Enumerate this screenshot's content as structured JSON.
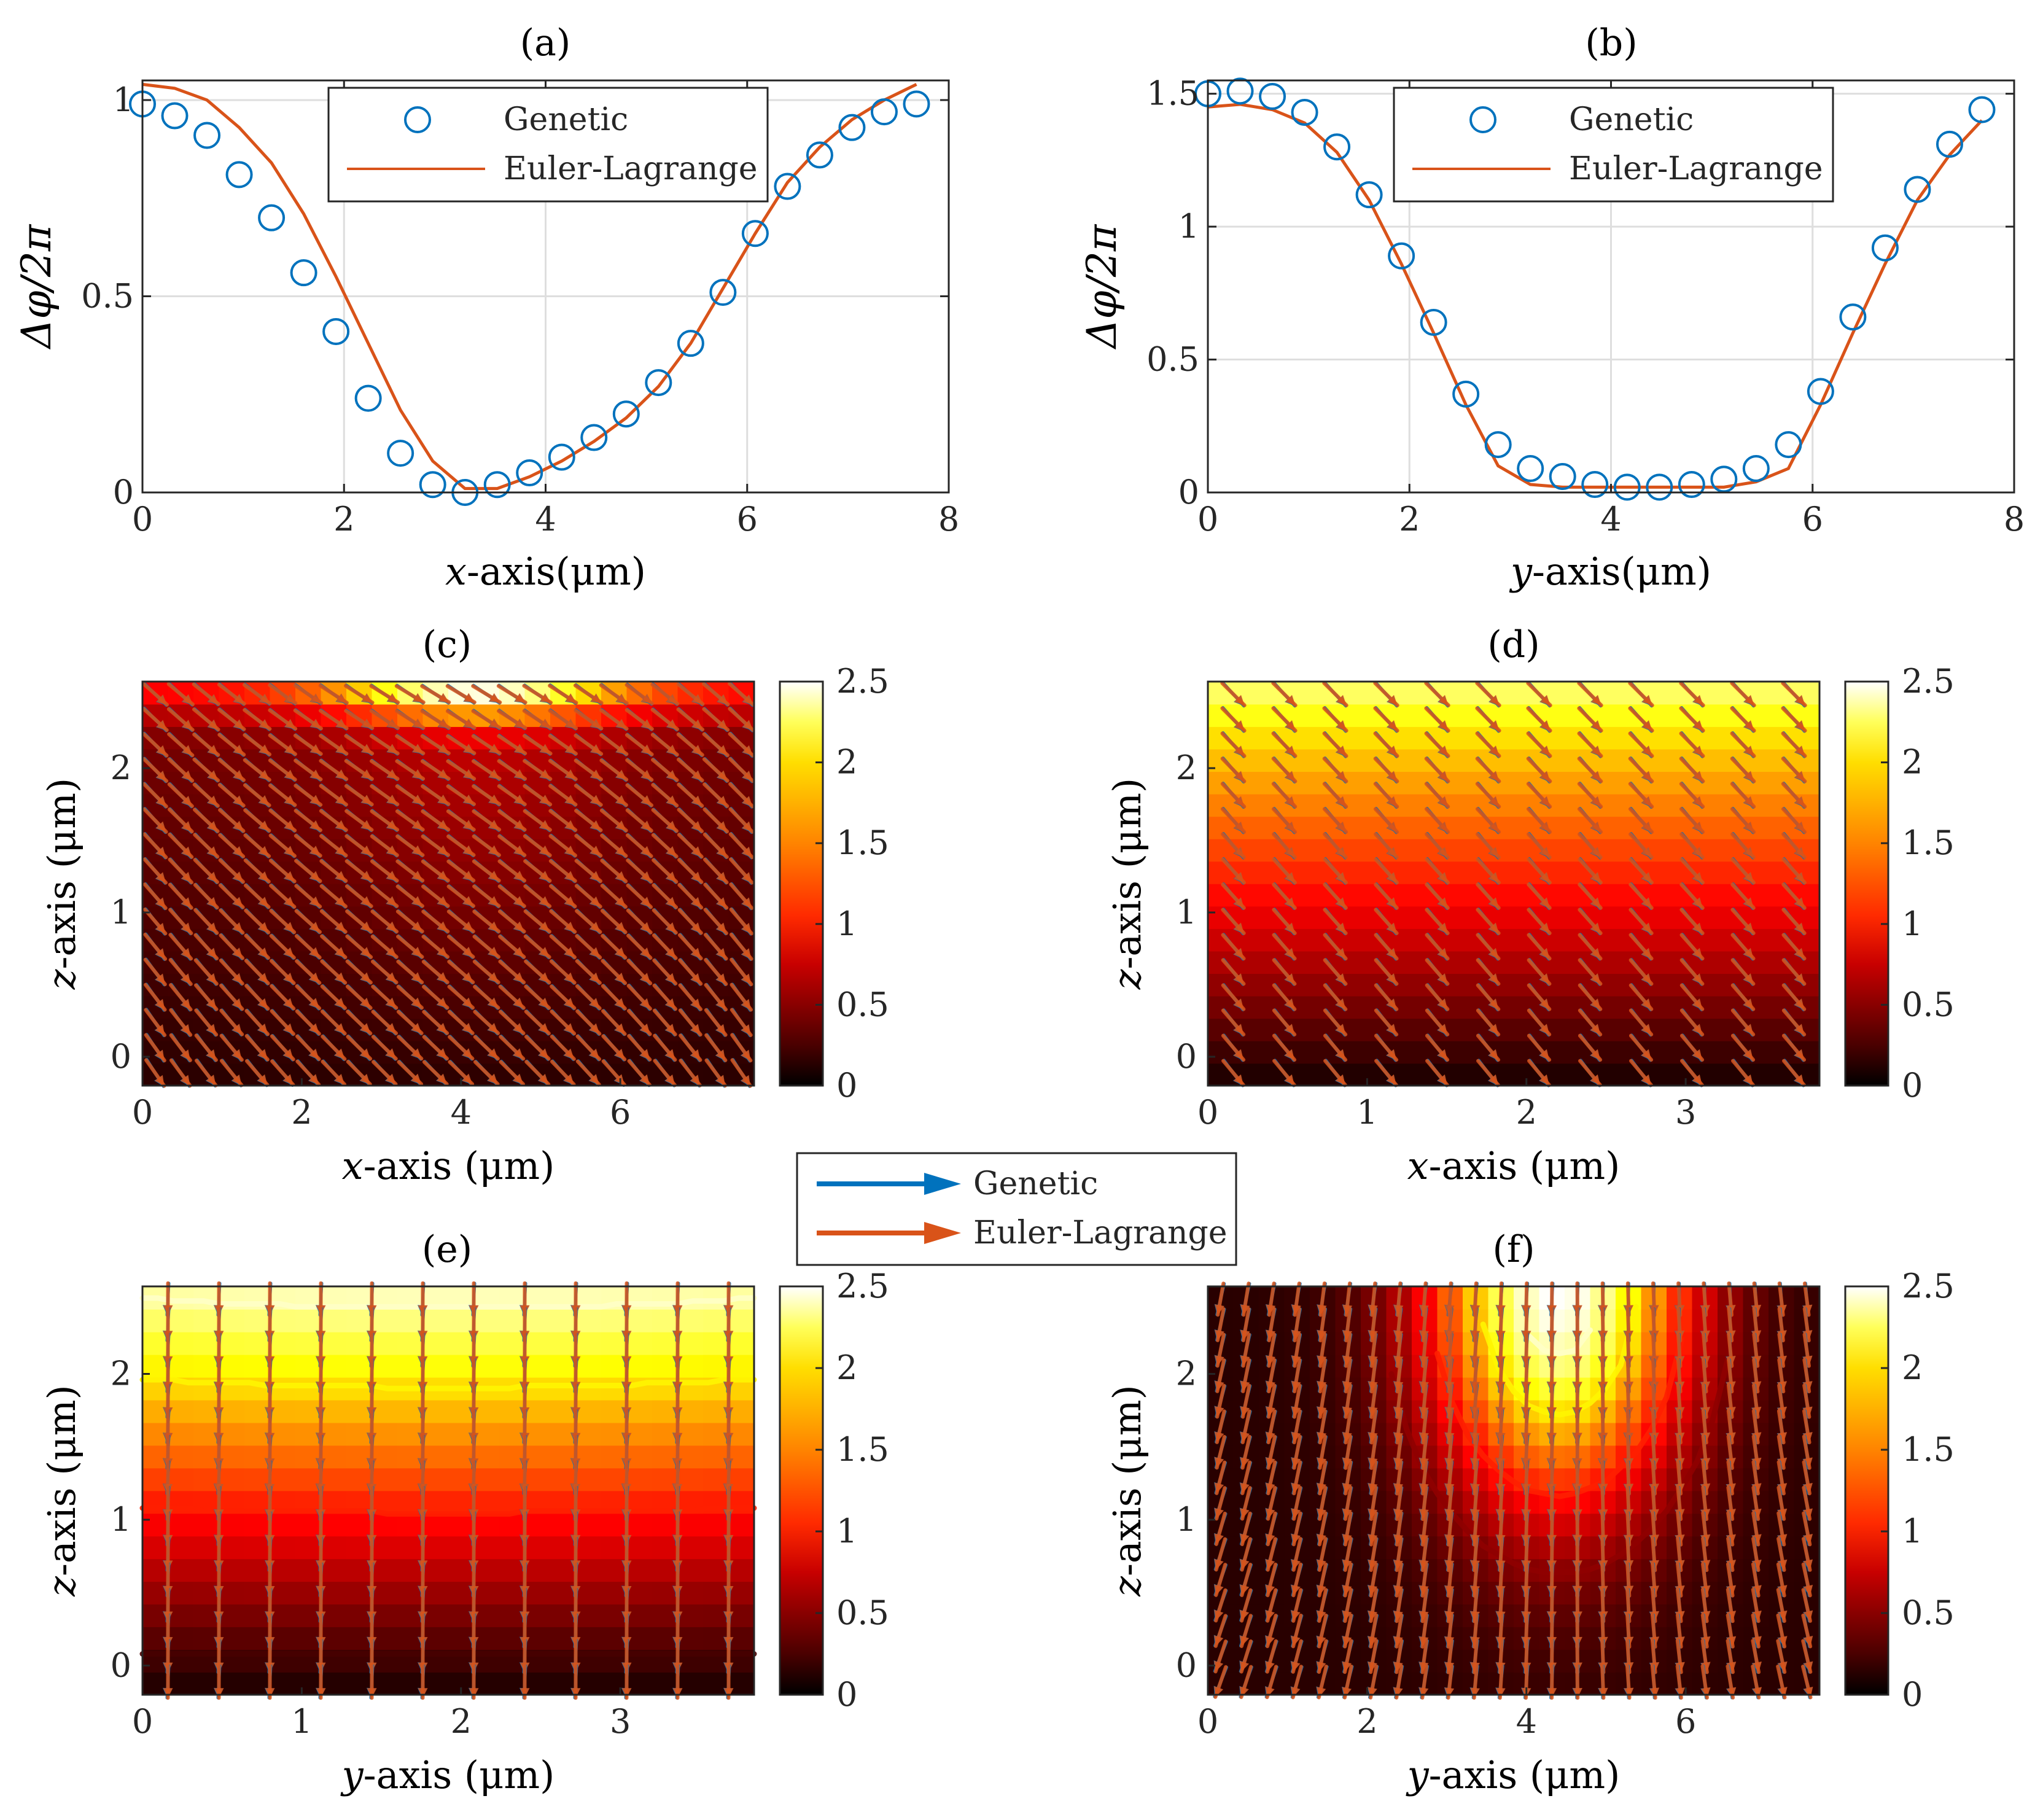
{
  "colors": {
    "genetic": "#0072BD",
    "euler": "#D95319",
    "grid": "#dedede",
    "axis": "#262626"
  },
  "legend_top": {
    "genetic": "Genetic",
    "euler": "Euler-Lagrange"
  },
  "legend_mid": {
    "genetic": "Genetic",
    "euler": "Euler-Lagrange"
  },
  "chart_data": [
    {
      "panel": "a",
      "type": "line",
      "title": "(a)",
      "xlabel_var": "x",
      "xlabel_rest": "-axis(μm)",
      "ylabel": "Δφ/2π",
      "xlim": [
        0,
        8
      ],
      "ylim": [
        0,
        1.05
      ],
      "xticks": [
        0,
        2,
        4,
        6,
        8
      ],
      "yticks": [
        0,
        0.5,
        1
      ],
      "ytick_labels": [
        "0",
        "0.5",
        "1"
      ],
      "grid": true,
      "legend_position": "top-right",
      "series": [
        {
          "name": "Genetic",
          "style": "markers",
          "x": [
            0,
            0.32,
            0.64,
            0.96,
            1.28,
            1.6,
            1.92,
            2.24,
            2.56,
            2.88,
            3.2,
            3.52,
            3.84,
            4.16,
            4.48,
            4.8,
            5.12,
            5.44,
            5.76,
            6.08,
            6.4,
            6.72,
            7.04,
            7.36,
            7.68
          ],
          "values": [
            0.99,
            0.96,
            0.91,
            0.81,
            0.7,
            0.56,
            0.41,
            0.24,
            0.1,
            0.02,
            0.0,
            0.02,
            0.05,
            0.09,
            0.14,
            0.2,
            0.28,
            0.38,
            0.51,
            0.66,
            0.78,
            0.86,
            0.93,
            0.97,
            0.99
          ]
        },
        {
          "name": "Euler-Lagrange",
          "style": "line",
          "x": [
            0,
            0.32,
            0.64,
            0.96,
            1.28,
            1.6,
            1.92,
            2.24,
            2.56,
            2.88,
            3.2,
            3.52,
            3.84,
            4.16,
            4.48,
            4.8,
            5.12,
            5.44,
            5.76,
            6.08,
            6.4,
            6.72,
            7.04,
            7.36,
            7.68
          ],
          "values": [
            1.04,
            1.03,
            1.0,
            0.93,
            0.84,
            0.71,
            0.55,
            0.38,
            0.21,
            0.08,
            0.01,
            0.01,
            0.04,
            0.08,
            0.13,
            0.19,
            0.27,
            0.38,
            0.52,
            0.66,
            0.79,
            0.88,
            0.95,
            1.0,
            1.04
          ]
        }
      ]
    },
    {
      "panel": "b",
      "type": "line",
      "title": "(b)",
      "xlabel_var": "y",
      "xlabel_rest": "-axis(μm)",
      "ylabel": "Δφ/2π",
      "xlim": [
        0,
        8
      ],
      "ylim": [
        0,
        1.55
      ],
      "xticks": [
        0,
        2,
        4,
        6,
        8
      ],
      "yticks": [
        0,
        0.5,
        1,
        1.5
      ],
      "ytick_labels": [
        "0",
        "0.5",
        "1",
        "1.5"
      ],
      "grid": true,
      "legend_position": "top-right",
      "series": [
        {
          "name": "Genetic",
          "style": "markers",
          "x": [
            0,
            0.32,
            0.64,
            0.96,
            1.28,
            1.6,
            1.92,
            2.24,
            2.56,
            2.88,
            3.2,
            3.52,
            3.84,
            4.16,
            4.48,
            4.8,
            5.12,
            5.44,
            5.76,
            6.08,
            6.4,
            6.72,
            7.04,
            7.36,
            7.68
          ],
          "values": [
            1.5,
            1.51,
            1.49,
            1.43,
            1.3,
            1.12,
            0.89,
            0.64,
            0.37,
            0.18,
            0.09,
            0.06,
            0.03,
            0.02,
            0.02,
            0.03,
            0.05,
            0.09,
            0.18,
            0.38,
            0.66,
            0.92,
            1.14,
            1.31,
            1.44
          ]
        },
        {
          "name": "Euler-Lagrange",
          "style": "line",
          "x": [
            0,
            0.32,
            0.64,
            0.96,
            1.28,
            1.6,
            1.92,
            2.24,
            2.56,
            2.88,
            3.2,
            3.52,
            3.84,
            4.16,
            4.48,
            4.8,
            5.12,
            5.44,
            5.76,
            6.08,
            6.4,
            6.72,
            7.04,
            7.36,
            7.68
          ],
          "values": [
            1.45,
            1.46,
            1.44,
            1.39,
            1.28,
            1.1,
            0.86,
            0.6,
            0.33,
            0.1,
            0.03,
            0.02,
            0.02,
            0.02,
            0.02,
            0.02,
            0.02,
            0.04,
            0.09,
            0.33,
            0.6,
            0.86,
            1.1,
            1.27,
            1.4
          ]
        }
      ]
    },
    {
      "panel": "c",
      "type": "heatmap",
      "title": "(c)",
      "xlabel_var": "x",
      "xlabel_rest": "-axis (μm)",
      "ylabel_var": "z",
      "ylabel_rest": "-axis (μm)",
      "xlim": [
        0,
        7.68
      ],
      "ylim": [
        -0.2,
        2.6
      ],
      "xticks": [
        0,
        2,
        4,
        6
      ],
      "yticks": [
        0,
        1,
        2
      ],
      "clim": [
        0,
        2.5
      ],
      "colorbar_ticks": [
        0,
        0.5,
        1,
        1.5,
        2,
        2.5
      ],
      "colorbar_labels": [
        "0",
        "0.5",
        "1",
        "1.5",
        "2",
        "2.5"
      ],
      "field": "c",
      "arrow_cols": 24,
      "arrow_rows": 16,
      "contours": []
    },
    {
      "panel": "d",
      "type": "heatmap",
      "title": "(d)",
      "xlabel_var": "x",
      "xlabel_rest": "-axis (μm)",
      "ylabel_var": "z",
      "ylabel_rest": "-axis (μm)",
      "xlim": [
        0,
        3.84
      ],
      "ylim": [
        -0.2,
        2.6
      ],
      "xticks": [
        0,
        1,
        2,
        3
      ],
      "yticks": [
        0,
        1,
        2
      ],
      "clim": [
        0,
        2.5
      ],
      "colorbar_ticks": [
        0,
        0.5,
        1,
        1.5,
        2,
        2.5
      ],
      "colorbar_labels": [
        "0",
        "0.5",
        "1",
        "1.5",
        "2",
        "2.5"
      ],
      "field": "d",
      "arrow_cols": 12,
      "arrow_rows": 16,
      "contours": []
    },
    {
      "panel": "e",
      "type": "heatmap",
      "title": "(e)",
      "xlabel_var": "y",
      "xlabel_rest": "-axis (μm)",
      "ylabel_var": "z",
      "ylabel_rest": "-axis (μm)",
      "xlim": [
        0,
        3.84
      ],
      "ylim": [
        -0.2,
        2.6
      ],
      "xticks": [
        0,
        1,
        2,
        3
      ],
      "yticks": [
        0,
        1,
        2
      ],
      "clim": [
        0,
        2.5
      ],
      "colorbar_ticks": [
        0,
        0.5,
        1,
        1.5,
        2,
        2.5
      ],
      "colorbar_labels": [
        "0",
        "0.5",
        "1",
        "1.5",
        "2",
        "2.5"
      ],
      "field": "e",
      "arrow_cols": 12,
      "arrow_rows": 16,
      "contours": [
        0.25,
        1.0,
        1.75,
        2.25,
        2.5
      ]
    },
    {
      "panel": "f",
      "type": "heatmap",
      "title": "(f)",
      "xlabel_var": "y",
      "xlabel_rest": "-axis (μm)",
      "ylabel_var": "z",
      "ylabel_rest": "-axis (μm)",
      "xlim": [
        0,
        7.68
      ],
      "ylim": [
        -0.2,
        2.6
      ],
      "xticks": [
        0,
        2,
        4,
        6
      ],
      "yticks": [
        0,
        1,
        2
      ],
      "clim": [
        0,
        2.5
      ],
      "colorbar_ticks": [
        0,
        0.5,
        1,
        1.5,
        2,
        2.5
      ],
      "colorbar_labels": [
        "0",
        "0.5",
        "1",
        "1.5",
        "2",
        "2.5"
      ],
      "field": "f",
      "arrow_cols": 24,
      "arrow_rows": 16,
      "contours": [
        0.5,
        1.0,
        1.75,
        2.25,
        2.5
      ]
    }
  ]
}
